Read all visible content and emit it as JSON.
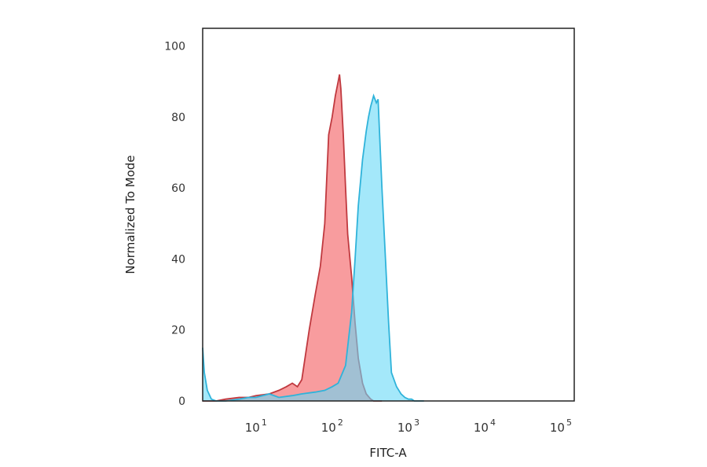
{
  "chart_data": {
    "type": "area",
    "xlabel": "FITC-A",
    "ylabel": "Normalized To Mode",
    "x_scale": "log",
    "xlim": [
      2,
      150000
    ],
    "ylim": [
      0,
      105
    ],
    "grid": false,
    "legend": "none",
    "y_ticks": [
      {
        "value": 0,
        "label": "0"
      },
      {
        "value": 20,
        "label": "20"
      },
      {
        "value": 40,
        "label": "40"
      },
      {
        "value": 60,
        "label": "60"
      },
      {
        "value": 80,
        "label": "80"
      },
      {
        "value": 100,
        "label": "100"
      }
    ],
    "x_ticks": [
      {
        "value": 10,
        "base": "10",
        "exp": "1"
      },
      {
        "value": 100,
        "base": "10",
        "exp": "2"
      },
      {
        "value": 1000,
        "base": "10",
        "exp": "3"
      },
      {
        "value": 10000,
        "base": "10",
        "exp": "4"
      },
      {
        "value": 100000,
        "base": "10",
        "exp": "5"
      }
    ],
    "series": [
      {
        "fill": "#f78b8d",
        "stroke": "#c0393f",
        "x": [
          2,
          2.5,
          3,
          4,
          6,
          8,
          10,
          15,
          20,
          25,
          30,
          35,
          40,
          50,
          60,
          70,
          80,
          90,
          100,
          110,
          120,
          125,
          130,
          140,
          150,
          160,
          180,
          200,
          220,
          250,
          280,
          320,
          350,
          380,
          400,
          450
        ],
        "y": [
          0,
          0,
          0,
          0.5,
          1,
          1,
          1.5,
          2,
          3,
          4,
          5,
          4,
          6,
          20,
          30,
          38,
          50,
          75,
          80,
          86,
          90,
          92,
          88,
          75,
          60,
          47,
          35,
          22,
          12,
          5,
          2,
          0.5,
          0,
          0,
          0,
          0
        ]
      },
      {
        "fill": "#68d8f7",
        "stroke": "#2fb3da",
        "x": [
          2,
          2.1,
          2.3,
          2.6,
          3,
          4,
          6,
          8,
          10,
          15,
          20,
          30,
          40,
          60,
          80,
          100,
          120,
          150,
          180,
          200,
          220,
          250,
          280,
          300,
          320,
          350,
          380,
          400,
          450,
          500,
          550,
          600,
          700,
          800,
          900,
          1000,
          1100,
          1200,
          1400,
          1600
        ],
        "y": [
          15,
          8,
          3,
          0.5,
          0,
          0,
          0.5,
          1,
          1,
          2,
          1,
          1.5,
          2,
          2.5,
          3,
          4,
          5,
          10,
          25,
          40,
          55,
          68,
          76,
          80,
          83,
          86,
          84,
          85,
          60,
          40,
          22,
          8,
          4,
          2,
          1,
          0.5,
          0.5,
          0,
          0,
          0
        ]
      }
    ]
  }
}
